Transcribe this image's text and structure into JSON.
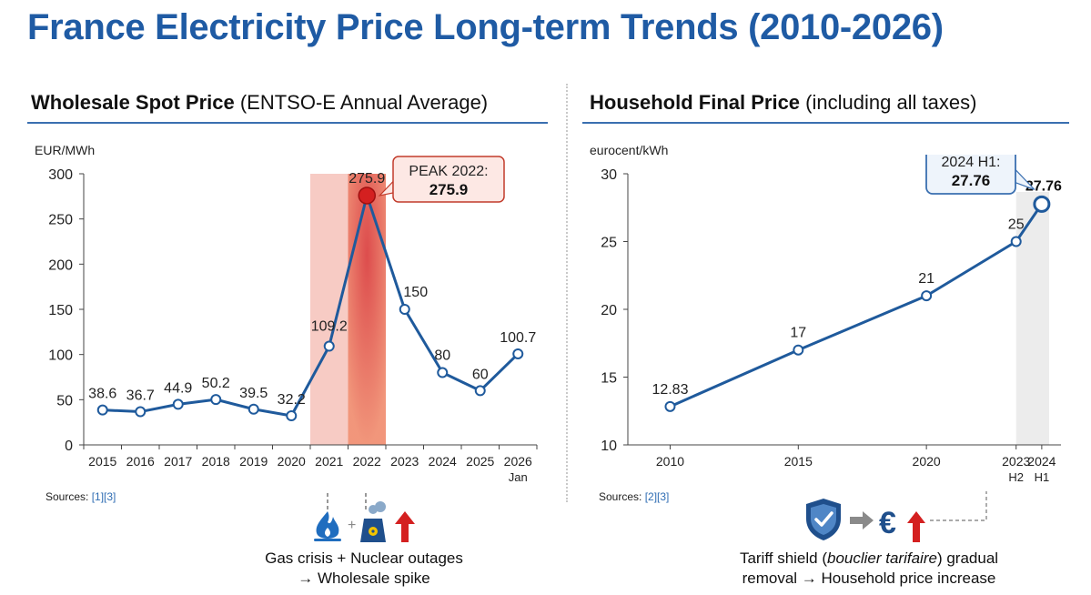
{
  "title": "France Electricity Price Long-term Trends (2010-2026)",
  "left_panel": {
    "title_bold": "Wholesale Spot Price",
    "title_rest": " (ENTSO-E Annual Average)",
    "unit": "EUR/MWh",
    "sources_prefix": "Sources: ",
    "refs": [
      "[1]",
      "[3]"
    ],
    "callout_line1": "PEAK 2022:",
    "callout_line2": "275.9",
    "caption_line1": "Gas crisis + Nuclear outages",
    "caption_line2": "→ Wholesale spike",
    "icons": [
      "flame-icon",
      "plus-icon",
      "nuclear-plant-icon",
      "up-arrow-icon"
    ],
    "icon_plus": "+",
    "colors": {
      "line": "#1f5a9c",
      "crisis_light": "#f4b9b0",
      "crisis_strong": "#ee7c5a",
      "peak": "#d42020",
      "arrow": "#d42020",
      "flame": "#1f6dbf"
    }
  },
  "right_panel": {
    "title_bold": "Household Final Price",
    "title_rest": " (including all taxes)",
    "unit": "eurocent/kWh",
    "sources_prefix": "Sources: ",
    "refs": [
      "[2]",
      "[3]"
    ],
    "callout_line1": "2024 H1:",
    "callout_line2": "27.76",
    "caption_line1_pre": "Tariff shield (",
    "caption_line1_em": "bouclier tarifaire",
    "caption_line1_post": ") gradual",
    "caption_line2": "removal → Household price increase",
    "icon_euro": "€",
    "icons": [
      "shield-check-icon",
      "right-arrow-icon",
      "euro-icon",
      "up-arrow-icon"
    ],
    "colors": {
      "line": "#1f5a9c",
      "highlight": "#ececec",
      "arrow": "#d42020",
      "shield": "#1f4f8c"
    }
  },
  "chart_data": [
    {
      "type": "line",
      "title": "Wholesale Spot Price (ENTSO-E Annual Average)",
      "ylabel": "EUR/MWh",
      "categories": [
        "2015",
        "2016",
        "2017",
        "2018",
        "2019",
        "2020",
        "2021",
        "2022",
        "2023",
        "2024",
        "2025",
        "2026"
      ],
      "category_sublabels": [
        "",
        "",
        "",
        "",
        "",
        "",
        "",
        "",
        "",
        "",
        "",
        "Jan"
      ],
      "values": [
        38.6,
        36.7,
        44.9,
        50.2,
        39.5,
        32.2,
        109.2,
        275.9,
        150,
        80,
        60,
        100.7
      ],
      "labels": [
        "38.6",
        "36.7",
        "44.9",
        "50.2",
        "39.5",
        "32.2",
        "109.2",
        "275.9",
        "150",
        "80",
        "60",
        "100.7"
      ],
      "ylim": [
        0,
        300
      ],
      "yticks": [
        0,
        50,
        100,
        150,
        200,
        250,
        300
      ],
      "highlight_categories": [
        "2021",
        "2022"
      ],
      "annotation": "PEAK 2022: 275.9"
    },
    {
      "type": "line",
      "title": "Household Final Price (including all taxes)",
      "ylabel": "eurocent/kWh",
      "x": [
        2010,
        2015,
        2020,
        2023.5,
        2024.5
      ],
      "tick_labels": [
        "2010",
        "2015",
        "2020",
        "2023",
        "2024"
      ],
      "tick_sublabels": [
        "",
        "",
        "",
        "H2",
        "H1"
      ],
      "values": [
        12.83,
        17,
        21,
        25,
        27.76
      ],
      "labels": [
        "12.83",
        "17",
        "21",
        "25",
        "27.76"
      ],
      "ylim": [
        10,
        30
      ],
      "yticks": [
        10,
        15,
        20,
        25,
        30
      ],
      "highlight_x": "2024 H1",
      "annotation": "2024 H1: 27.76"
    }
  ]
}
